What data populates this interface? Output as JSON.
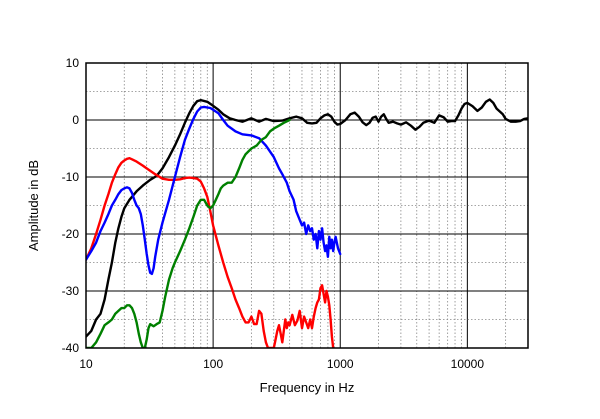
{
  "chart_data": {
    "type": "line",
    "title": "",
    "xlabel": "Frequency in Hz",
    "ylabel": "Amplitude in dB",
    "x_scale": "log",
    "xlim": [
      10,
      30000
    ],
    "ylim": [
      -40,
      10
    ],
    "x_tick_labels": [
      "10",
      "100",
      "1000",
      "10000"
    ],
    "x_tick_values": [
      10,
      100,
      1000,
      10000
    ],
    "y_tick_labels": [
      "10",
      "0",
      "-10",
      "-20",
      "-30",
      "-40"
    ],
    "y_tick_values": [
      10,
      0,
      -10,
      -20,
      -30,
      -40
    ],
    "grid": true,
    "legend": "none",
    "series": [
      {
        "color": "#000000",
        "points": [
          [
            10,
            -38
          ],
          [
            11,
            -37
          ],
          [
            12,
            -35
          ],
          [
            13,
            -34
          ],
          [
            14,
            -31.5
          ],
          [
            15,
            -28
          ],
          [
            16,
            -25
          ],
          [
            17,
            -21.5
          ],
          [
            18,
            -19
          ],
          [
            19,
            -17
          ],
          [
            20,
            -15.5
          ],
          [
            22,
            -14
          ],
          [
            25,
            -12.5
          ],
          [
            28,
            -11.5
          ],
          [
            32,
            -10.5
          ],
          [
            36,
            -9.8
          ],
          [
            40,
            -8.5
          ],
          [
            45,
            -6.5
          ],
          [
            50,
            -4.5
          ],
          [
            55,
            -2.5
          ],
          [
            60,
            -0.5
          ],
          [
            65,
            1.2
          ],
          [
            70,
            2.5
          ],
          [
            75,
            3.3
          ],
          [
            80,
            3.5
          ],
          [
            90,
            3.2
          ],
          [
            100,
            2.5
          ],
          [
            110,
            1.8
          ],
          [
            120,
            1.0
          ],
          [
            135,
            0.3
          ],
          [
            150,
            0
          ],
          [
            170,
            -0.3
          ],
          [
            200,
            0.3
          ],
          [
            230,
            -0.3
          ],
          [
            260,
            0.2
          ],
          [
            300,
            -0.2
          ],
          [
            350,
            -0.1
          ],
          [
            400,
            0.3
          ],
          [
            450,
            0.6
          ],
          [
            500,
            0.3
          ],
          [
            550,
            -0.5
          ],
          [
            600,
            -0.6
          ],
          [
            650,
            -0.5
          ],
          [
            700,
            0.3
          ],
          [
            750,
            0.8
          ],
          [
            800,
            1.0
          ],
          [
            850,
            0.6
          ],
          [
            900,
            -0.3
          ],
          [
            950,
            -0.8
          ],
          [
            1000,
            -0.7
          ],
          [
            1100,
            0
          ],
          [
            1200,
            1.0
          ],
          [
            1300,
            1.3
          ],
          [
            1400,
            0.6
          ],
          [
            1500,
            -0.4
          ],
          [
            1600,
            -0.9
          ],
          [
            1700,
            -0.5
          ],
          [
            1800,
            0.4
          ],
          [
            1900,
            0.6
          ],
          [
            2000,
            -0.3
          ],
          [
            2100,
            0.6
          ],
          [
            2200,
            1.0
          ],
          [
            2300,
            0.2
          ],
          [
            2400,
            -0.5
          ],
          [
            2600,
            -0.3
          ],
          [
            2800,
            -0.6
          ],
          [
            3000,
            -0.8
          ],
          [
            3300,
            -0.4
          ],
          [
            3600,
            -1.0
          ],
          [
            3900,
            -1.7
          ],
          [
            4200,
            -1.2
          ],
          [
            4500,
            -0.5
          ],
          [
            5000,
            -0.1
          ],
          [
            5500,
            -0.5
          ],
          [
            6000,
            0.8
          ],
          [
            6500,
            0.5
          ],
          [
            7000,
            -0.3
          ],
          [
            7500,
            -0.2
          ],
          [
            8000,
            -0.2
          ],
          [
            8500,
            0.8
          ],
          [
            9000,
            2.0
          ],
          [
            9500,
            2.8
          ],
          [
            10000,
            3.0
          ],
          [
            11000,
            2.4
          ],
          [
            12000,
            1.6
          ],
          [
            13000,
            2.2
          ],
          [
            14000,
            3.2
          ],
          [
            15000,
            3.6
          ],
          [
            16000,
            3.0
          ],
          [
            17000,
            2.0
          ],
          [
            18000,
            1.5
          ],
          [
            19000,
            1.0
          ],
          [
            20000,
            0.2
          ],
          [
            22000,
            -0.3
          ],
          [
            24000,
            -0.3
          ],
          [
            26000,
            -0.2
          ],
          [
            28000,
            0.2
          ],
          [
            30000,
            0.3
          ]
        ]
      },
      {
        "color": "#ff0000",
        "points": [
          [
            10,
            -24.5
          ],
          [
            11,
            -22.5
          ],
          [
            12,
            -20
          ],
          [
            13,
            -17.5
          ],
          [
            14,
            -15
          ],
          [
            15,
            -13
          ],
          [
            16,
            -11
          ],
          [
            17,
            -9.5
          ],
          [
            18,
            -8.3
          ],
          [
            19,
            -7.5
          ],
          [
            20,
            -7.1
          ],
          [
            21,
            -6.8
          ],
          [
            22,
            -6.7
          ],
          [
            23,
            -6.9
          ],
          [
            25,
            -7.3
          ],
          [
            28,
            -8.0
          ],
          [
            30,
            -8.5
          ],
          [
            35,
            -9.5
          ],
          [
            40,
            -10.3
          ],
          [
            45,
            -10.5
          ],
          [
            50,
            -10.5
          ],
          [
            55,
            -10.4
          ],
          [
            60,
            -10.2
          ],
          [
            65,
            -10.1
          ],
          [
            70,
            -10.2
          ],
          [
            75,
            -10.3
          ],
          [
            80,
            -10.8
          ],
          [
            85,
            -12.0
          ],
          [
            90,
            -13.5
          ],
          [
            95,
            -16
          ],
          [
            100,
            -18.5
          ],
          [
            110,
            -22
          ],
          [
            120,
            -25
          ],
          [
            130,
            -27.5
          ],
          [
            140,
            -29.5
          ],
          [
            150,
            -31.5
          ],
          [
            160,
            -33
          ],
          [
            170,
            -34.5
          ],
          [
            180,
            -35.5
          ],
          [
            190,
            -35.5
          ],
          [
            200,
            -34.5
          ],
          [
            210,
            -35.8
          ],
          [
            220,
            -35.8
          ],
          [
            230,
            -33.5
          ],
          [
            240,
            -34
          ],
          [
            250,
            -37
          ],
          [
            260,
            -39
          ],
          [
            270,
            -40
          ],
          [
            300,
            -40
          ],
          [
            310,
            -38.5
          ],
          [
            320,
            -37
          ],
          [
            330,
            -36
          ],
          [
            340,
            -37.5
          ],
          [
            350,
            -39
          ],
          [
            360,
            -37
          ],
          [
            370,
            -35
          ],
          [
            380,
            -36.5
          ],
          [
            390,
            -35.5
          ],
          [
            400,
            -36
          ],
          [
            420,
            -34.2
          ],
          [
            440,
            -36
          ],
          [
            460,
            -35.2
          ],
          [
            480,
            -33.5
          ],
          [
            500,
            -36.5
          ],
          [
            520,
            -34.5
          ],
          [
            540,
            -35.5
          ],
          [
            560,
            -36.5
          ],
          [
            580,
            -35
          ],
          [
            600,
            -36.5
          ],
          [
            620,
            -34.5
          ],
          [
            640,
            -33
          ],
          [
            660,
            -32
          ],
          [
            680,
            -31.5
          ],
          [
            700,
            -29.5
          ],
          [
            720,
            -29
          ],
          [
            740,
            -30.5
          ],
          [
            760,
            -32
          ],
          [
            780,
            -30
          ],
          [
            800,
            -31
          ],
          [
            820,
            -32.5
          ],
          [
            840,
            -35
          ],
          [
            860,
            -38
          ],
          [
            880,
            -40
          ]
        ]
      },
      {
        "color": "#0000ff",
        "points": [
          [
            10,
            -24.5
          ],
          [
            11,
            -23
          ],
          [
            12,
            -21.5
          ],
          [
            13,
            -19.5
          ],
          [
            14,
            -18
          ],
          [
            15,
            -16.5
          ],
          [
            16,
            -15
          ],
          [
            17,
            -14
          ],
          [
            18,
            -13
          ],
          [
            19,
            -12.3
          ],
          [
            20,
            -12
          ],
          [
            21,
            -11.8
          ],
          [
            22,
            -12.0
          ],
          [
            23,
            -12.8
          ],
          [
            24,
            -14.0
          ],
          [
            25,
            -15.0
          ],
          [
            26,
            -15.5
          ],
          [
            27,
            -16.5
          ],
          [
            28,
            -18.5
          ],
          [
            29,
            -21
          ],
          [
            30,
            -23.5
          ],
          [
            31,
            -25.5
          ],
          [
            32,
            -26.8
          ],
          [
            33,
            -27
          ],
          [
            34,
            -26
          ],
          [
            35,
            -24
          ],
          [
            37,
            -21
          ],
          [
            40,
            -18
          ],
          [
            45,
            -14
          ],
          [
            50,
            -10
          ],
          [
            55,
            -6.5
          ],
          [
            60,
            -3.5
          ],
          [
            65,
            -1.5
          ],
          [
            70,
            0.2
          ],
          [
            75,
            1.5
          ],
          [
            80,
            2.2
          ],
          [
            85,
            2.3
          ],
          [
            90,
            2.2
          ],
          [
            95,
            2.1
          ],
          [
            100,
            1.8
          ],
          [
            110,
            1.2
          ],
          [
            120,
            0
          ],
          [
            130,
            -1.0
          ],
          [
            140,
            -1.5
          ],
          [
            150,
            -2
          ],
          [
            170,
            -2.5
          ],
          [
            200,
            -2.7
          ],
          [
            230,
            -3.2
          ],
          [
            260,
            -4.5
          ],
          [
            300,
            -6.5
          ],
          [
            330,
            -8.5
          ],
          [
            350,
            -9.5
          ],
          [
            380,
            -11
          ],
          [
            400,
            -12.5
          ],
          [
            430,
            -14
          ],
          [
            450,
            -16
          ],
          [
            480,
            -17.5
          ],
          [
            500,
            -18.5
          ],
          [
            520,
            -18
          ],
          [
            540,
            -20
          ],
          [
            560,
            -18.5
          ],
          [
            580,
            -19.5
          ],
          [
            600,
            -19
          ],
          [
            620,
            -21
          ],
          [
            640,
            -20
          ],
          [
            660,
            -22.5
          ],
          [
            680,
            -19.5
          ],
          [
            700,
            -21
          ],
          [
            720,
            -19
          ],
          [
            740,
            -21.5
          ],
          [
            760,
            -23
          ],
          [
            780,
            -22
          ],
          [
            800,
            -24
          ],
          [
            820,
            -20.5
          ],
          [
            840,
            -22.5
          ],
          [
            860,
            -21
          ],
          [
            880,
            -23
          ],
          [
            900,
            -21.5
          ],
          [
            920,
            -20.5
          ],
          [
            940,
            -21.5
          ],
          [
            960,
            -22.5
          ],
          [
            980,
            -23
          ],
          [
            1000,
            -23.5
          ]
        ]
      },
      {
        "color": "#008000",
        "points": [
          [
            10,
            -40
          ],
          [
            11,
            -40
          ],
          [
            12,
            -39
          ],
          [
            13,
            -37.5
          ],
          [
            14,
            -36
          ],
          [
            15,
            -35.5
          ],
          [
            16,
            -35
          ],
          [
            17,
            -34
          ],
          [
            18,
            -33.5
          ],
          [
            19,
            -33
          ],
          [
            20,
            -33
          ],
          [
            21,
            -32.5
          ],
          [
            22,
            -32.5
          ],
          [
            23,
            -33
          ],
          [
            24,
            -34
          ],
          [
            25,
            -35.5
          ],
          [
            26,
            -37.5
          ],
          [
            27,
            -39
          ],
          [
            28,
            -40
          ],
          [
            29,
            -40
          ],
          [
            30,
            -38.5
          ],
          [
            31,
            -36.5
          ],
          [
            32,
            -35.8
          ],
          [
            34,
            -36.2
          ],
          [
            36,
            -35.8
          ],
          [
            38,
            -35.5
          ],
          [
            40,
            -33.5
          ],
          [
            42,
            -31
          ],
          [
            45,
            -28
          ],
          [
            48,
            -26
          ],
          [
            50,
            -25
          ],
          [
            55,
            -23
          ],
          [
            60,
            -21
          ],
          [
            65,
            -19
          ],
          [
            70,
            -17
          ],
          [
            75,
            -15
          ],
          [
            80,
            -14
          ],
          [
            85,
            -14
          ],
          [
            90,
            -15
          ],
          [
            95,
            -15.5
          ],
          [
            100,
            -15
          ],
          [
            105,
            -14
          ],
          [
            110,
            -13
          ],
          [
            115,
            -12
          ],
          [
            120,
            -11.5
          ],
          [
            130,
            -11
          ],
          [
            140,
            -11
          ],
          [
            150,
            -10
          ],
          [
            160,
            -8.5
          ],
          [
            170,
            -7
          ],
          [
            180,
            -6
          ],
          [
            190,
            -5.5
          ],
          [
            200,
            -5
          ],
          [
            220,
            -4.5
          ],
          [
            240,
            -3.5
          ],
          [
            260,
            -3
          ],
          [
            280,
            -2
          ],
          [
            300,
            -1.5
          ],
          [
            330,
            -1
          ],
          [
            360,
            -0.5
          ],
          [
            400,
            0
          ]
        ]
      }
    ]
  }
}
